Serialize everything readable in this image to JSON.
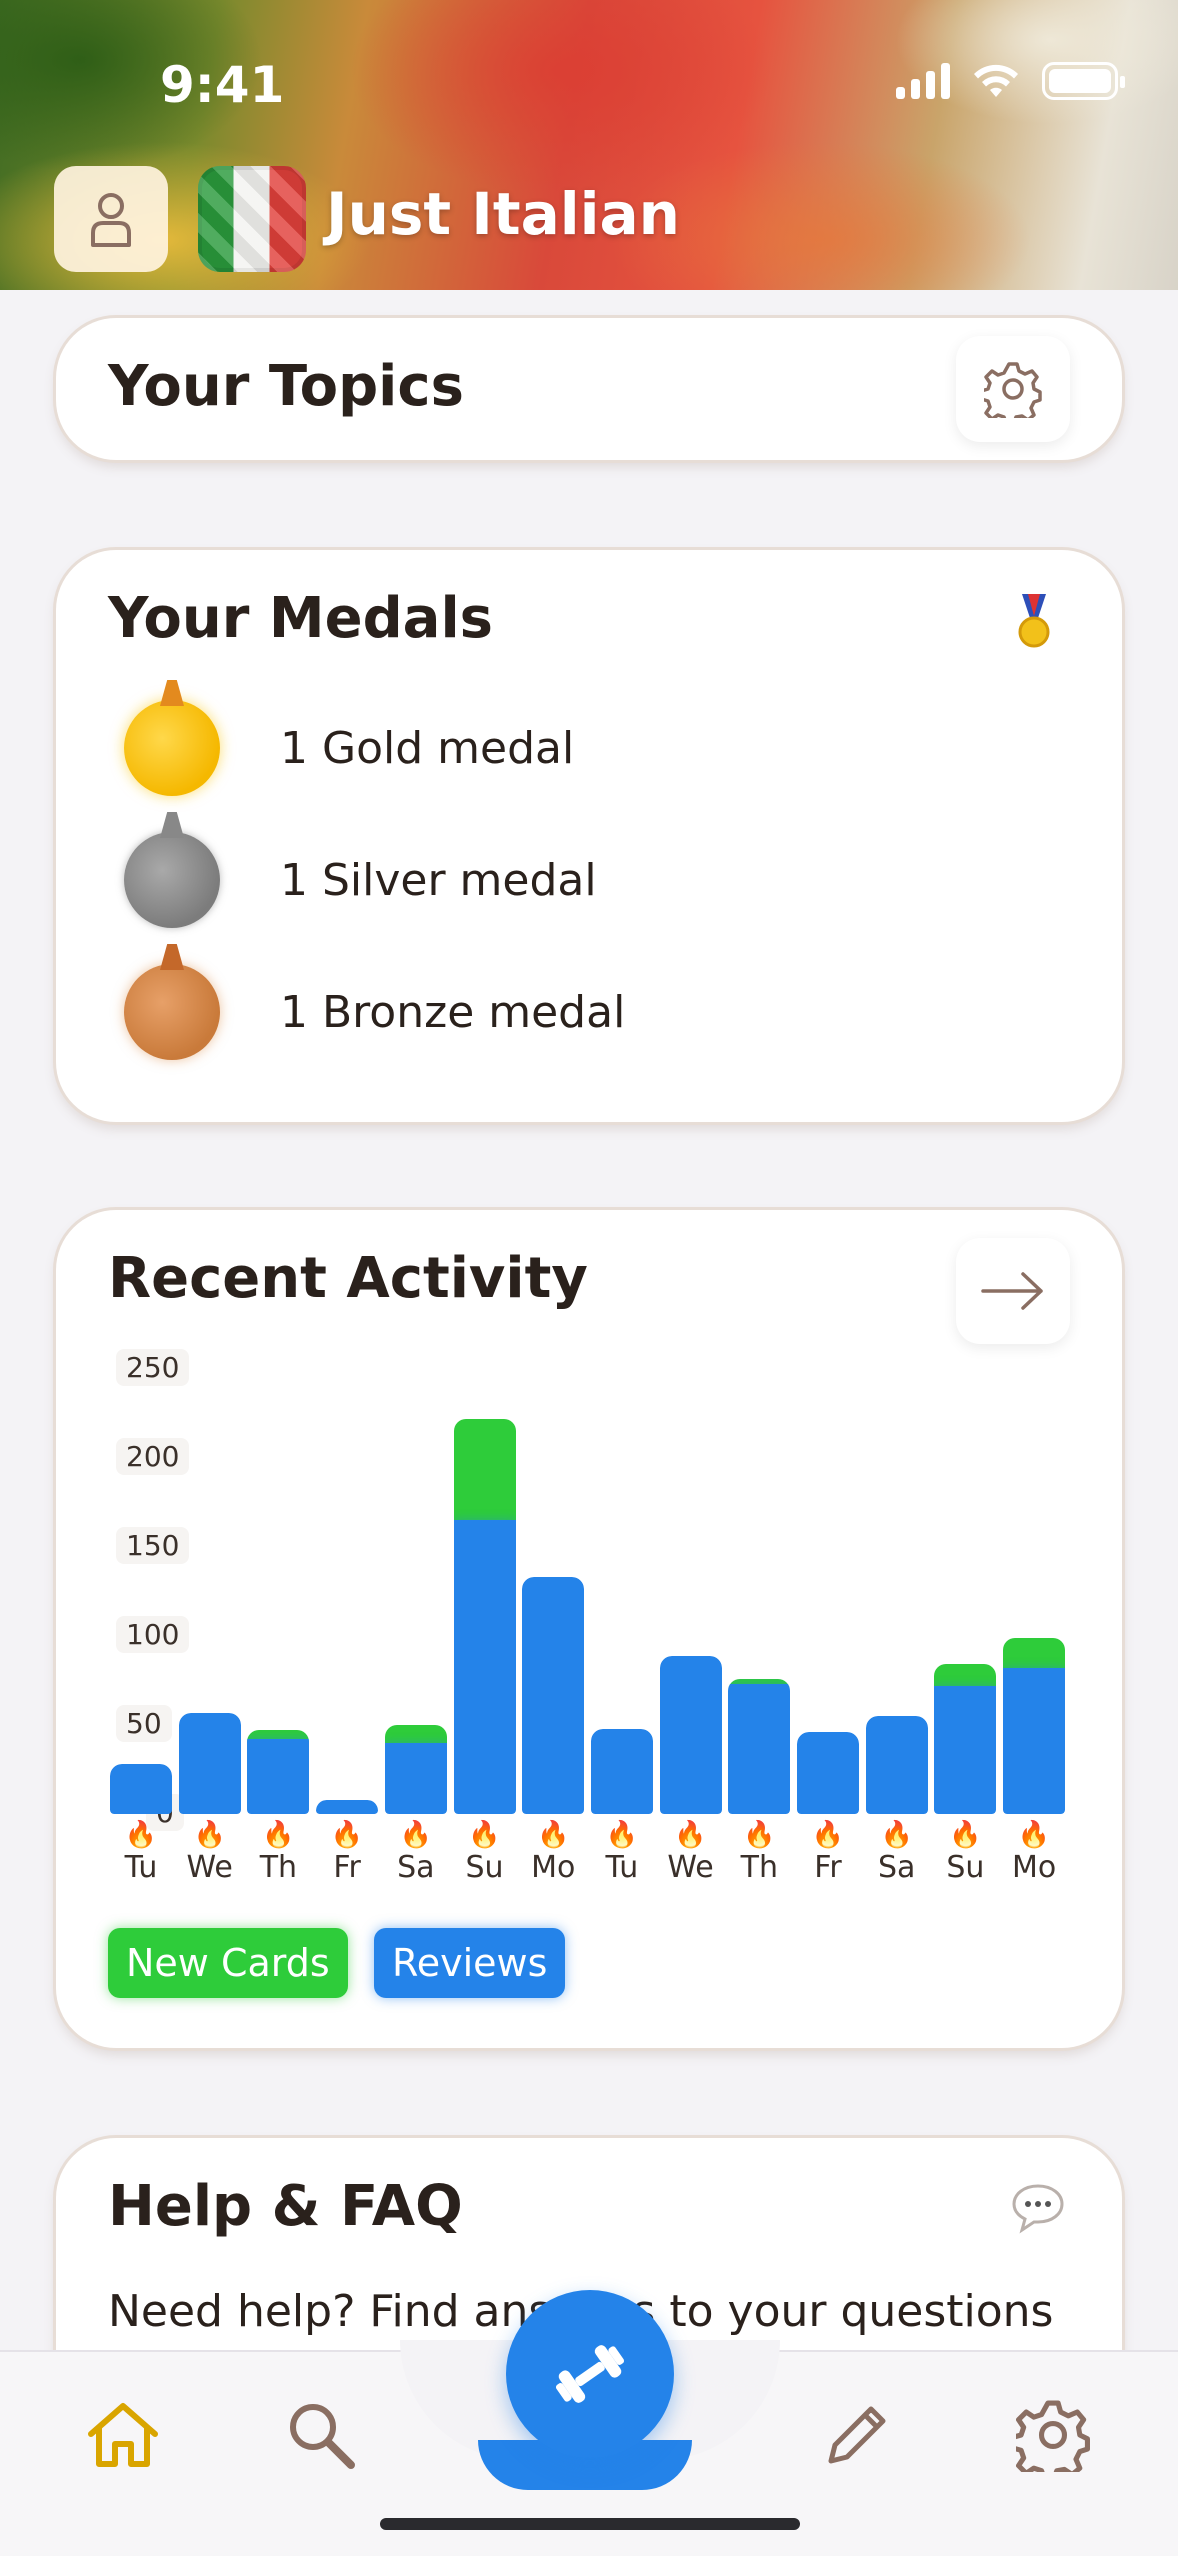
{
  "status_bar": {
    "time": "9:41"
  },
  "header": {
    "app_title": "Just Italian"
  },
  "topics_card": {
    "title": "Your Topics"
  },
  "medals_card": {
    "title": "Your Medals",
    "items": [
      {
        "type": "gold",
        "label": "1 Gold medal"
      },
      {
        "type": "silver",
        "label": "1 Silver medal"
      },
      {
        "type": "bronze",
        "label": "1 Bronze medal"
      }
    ]
  },
  "activity_card": {
    "title": "Recent Activity",
    "legend": {
      "new_cards": "New Cards",
      "reviews": "Reviews"
    }
  },
  "chart_data": {
    "type": "bar",
    "stacked": true,
    "categories": [
      "Tu",
      "We",
      "Th",
      "Fr",
      "Sa",
      "Su",
      "Mo",
      "Tu",
      "We",
      "Th",
      "Fr",
      "Sa",
      "Su",
      "Mo"
    ],
    "series": [
      {
        "name": "Reviews",
        "color": "#2483e9",
        "values": [
          28,
          57,
          42,
          8,
          40,
          165,
          133,
          48,
          89,
          73,
          46,
          55,
          72,
          82
        ]
      },
      {
        "name": "New Cards",
        "color": "#2ecc3a",
        "values": [
          0,
          0,
          5,
          0,
          10,
          57,
          0,
          0,
          0,
          3,
          0,
          0,
          12,
          17
        ]
      }
    ],
    "yticks": [
      "0",
      "50",
      "100",
      "150",
      "200",
      "250"
    ],
    "ylim": [
      0,
      250
    ],
    "streak_icon": "flame-icon"
  },
  "help_card": {
    "title": "Help & FAQ",
    "text": "Need help? Find answers to your questions"
  },
  "colors": {
    "accent": "#2483e9",
    "new_cards": "#2ecc3a",
    "home_active": "#d9a500",
    "icon_muted": "#8a6e62"
  }
}
